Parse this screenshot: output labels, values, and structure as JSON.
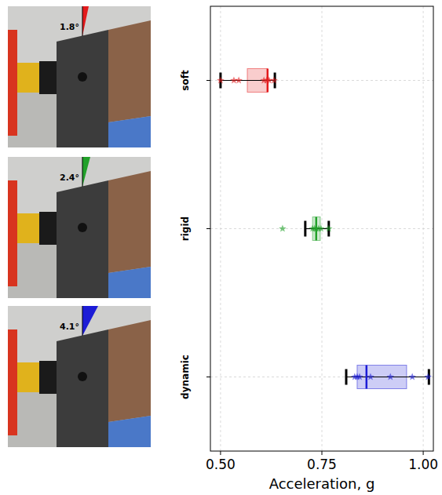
{
  "chart_data": {
    "type": "box",
    "orientation": "horizontal",
    "categories": [
      "soft",
      "rigid",
      "dynamic"
    ],
    "x_label": "Acceleration, g",
    "xlim": [
      0.475,
      1.025
    ],
    "xticks": [
      {
        "value": 0.5,
        "label": "0.50"
      },
      {
        "value": 0.75,
        "label": "0.75"
      },
      {
        "value": 1.0,
        "label": "1.00"
      }
    ],
    "grid": true,
    "marker": "star",
    "annotations": [
      "1.8°",
      "2.4°",
      "4.1°"
    ],
    "series": [
      {
        "color": "#e31a1c",
        "whisker_low": 0.5,
        "q1": 0.566,
        "median": 0.616,
        "q3": 0.616,
        "whisker_high": 0.634,
        "points": [
          0.5,
          0.533,
          0.545,
          0.607,
          0.614,
          0.62,
          0.632
        ]
      },
      {
        "color": "#22a12a",
        "whisker_low": 0.709,
        "q1": 0.727,
        "median": 0.736,
        "q3": 0.746,
        "whisker_high": 0.767,
        "points": [
          0.653,
          0.727,
          0.732,
          0.736,
          0.742,
          0.748,
          0.767
        ]
      },
      {
        "color": "#1c1cd6",
        "whisker_low": 0.81,
        "q1": 0.837,
        "median": 0.86,
        "q3": 0.959,
        "whisker_high": 1.014,
        "points": [
          0.831,
          0.837,
          0.843,
          0.87,
          0.919,
          0.973,
          1.012
        ]
      }
    ]
  }
}
